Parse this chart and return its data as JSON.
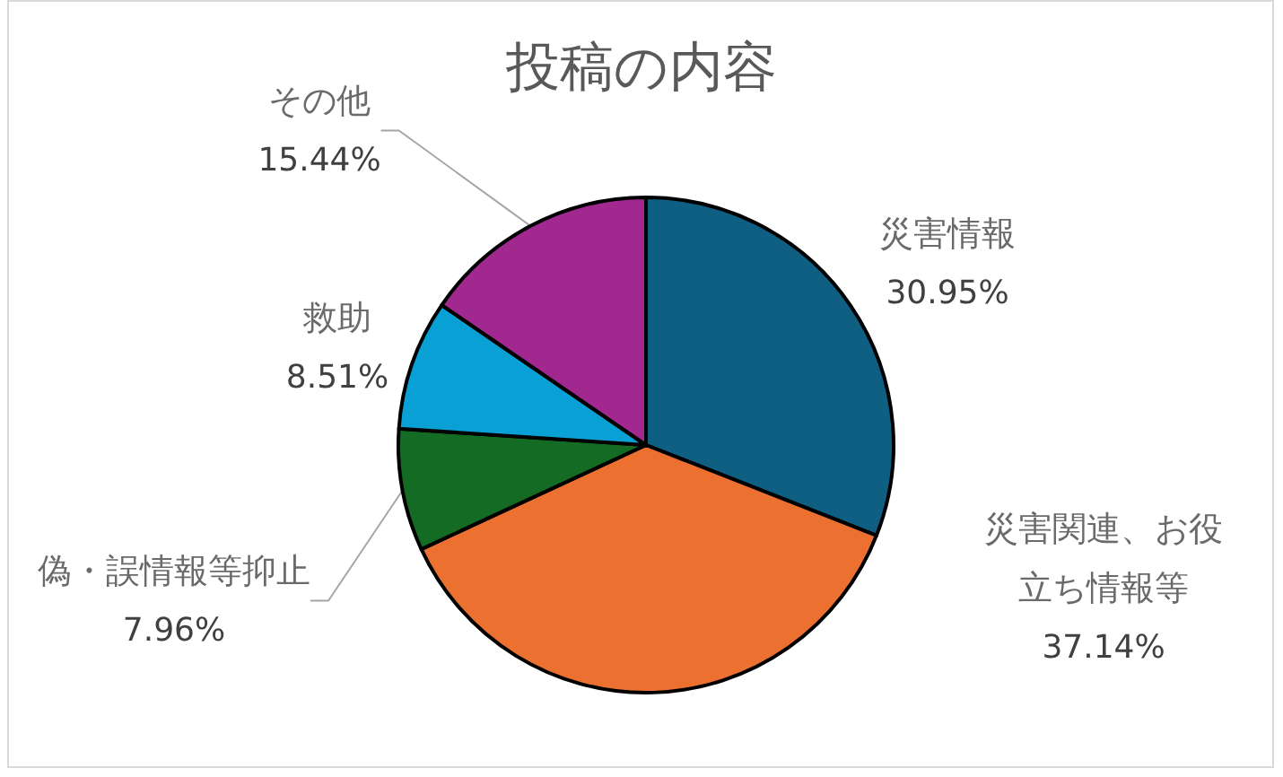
{
  "chart_data": {
    "type": "pie",
    "title": "投稿の内容",
    "categories": [
      "災害情報",
      "災害関連、お役立ち情報等",
      "偽・誤情報等抑止",
      "救助",
      "その他"
    ],
    "values": [
      30.95,
      37.14,
      7.96,
      8.51,
      15.44
    ],
    "colors": [
      "#0f5f82",
      "#ec7131",
      "#136b24",
      "#08a0d5",
      "#a0288f"
    ],
    "value_labels": [
      "30.95%",
      "37.14%",
      "7.96%",
      "8.51%",
      "15.44%"
    ],
    "legend": false
  }
}
